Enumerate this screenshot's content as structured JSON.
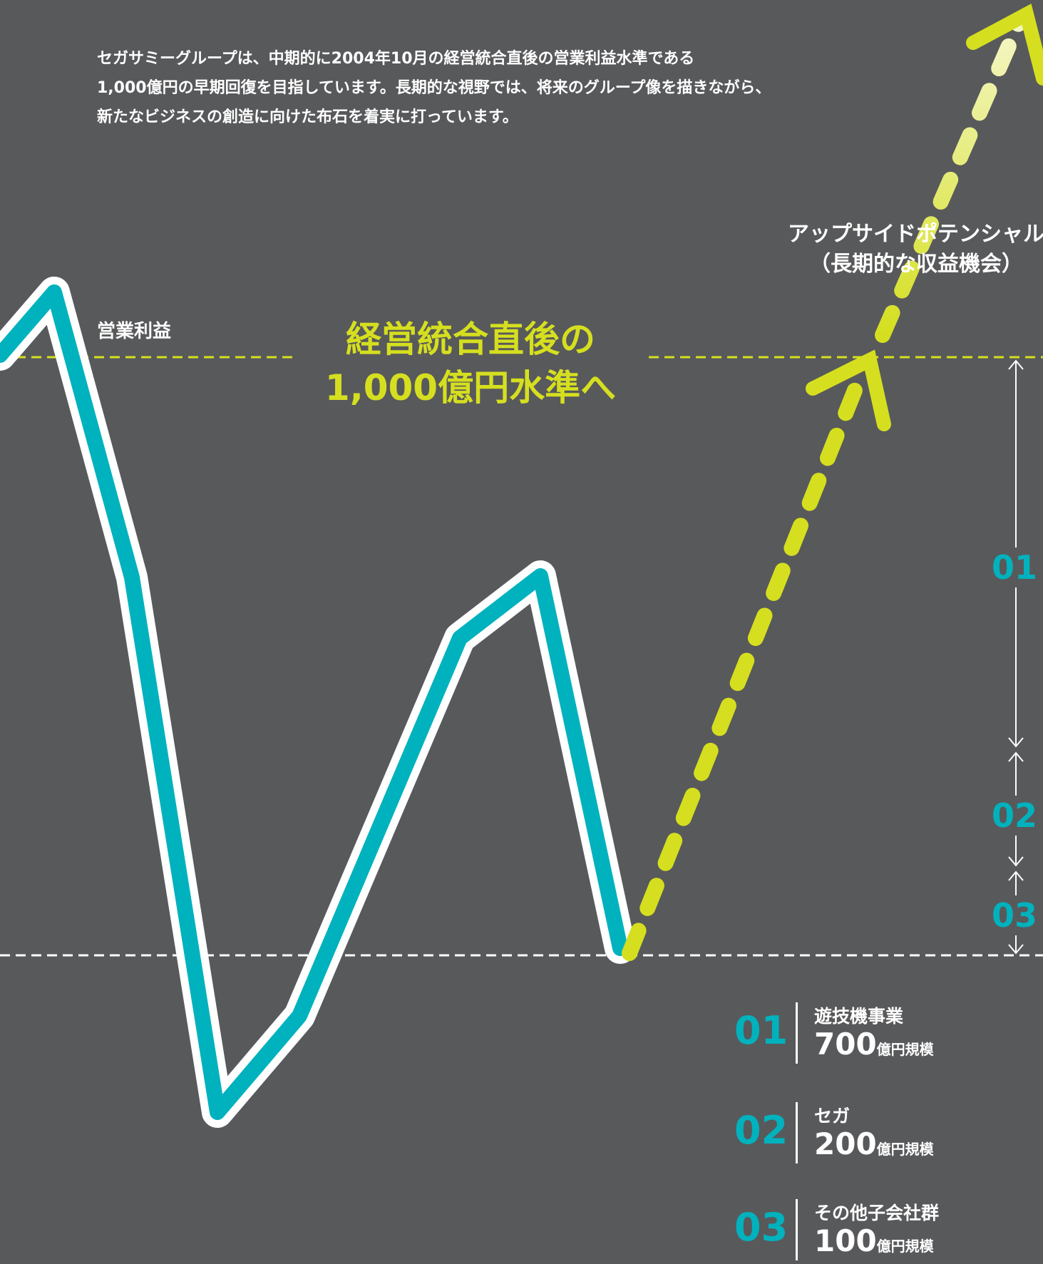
{
  "intro": {
    "lines": [
      "セガサミーグループは、中期的に2004年10月の経営統合直後の営業利益水準である",
      "1,000億円の早期回復を目指しています。長期的な視野では、将来のグループ像を描きながら、",
      "新たなビジネスの創造に向けた布石を着実に打っています。"
    ]
  },
  "chart": {
    "series_label": "営業利益",
    "target_label": [
      "経営統合直後の",
      "1,000億円水準へ"
    ],
    "upside_label": [
      "アップサイドポテンシャル",
      "（長期的な収益機会）"
    ]
  },
  "segments": [
    {
      "number": "01",
      "name": "遊技機事業",
      "value": "700",
      "unit": "億円規模"
    },
    {
      "number": "02",
      "name": "セガ",
      "value": "200",
      "unit": "億円規模"
    },
    {
      "number": "03",
      "name": "その他子会社群",
      "value": "100",
      "unit": "億円規模"
    }
  ],
  "colors": {
    "background": "#58595b",
    "profit_line": "#00b2bd",
    "target_accent": "#d5df1f",
    "upside_end": "#f4f7c9"
  }
}
